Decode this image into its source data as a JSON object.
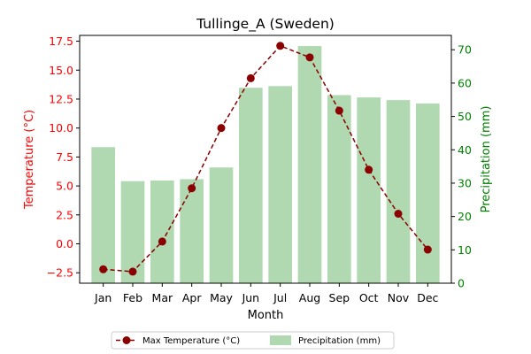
{
  "chart_data": {
    "type": "bar",
    "title": "Tullinge_A (Sweden)",
    "xlabel": "Month",
    "ylabel_left": "Temperature (°C)",
    "ylabel_right": "Precipitation (mm)",
    "categories": [
      "Jan",
      "Feb",
      "Mar",
      "Apr",
      "May",
      "Jun",
      "Jul",
      "Aug",
      "Sep",
      "Oct",
      "Nov",
      "Dec"
    ],
    "ylim_left": [
      -3.4,
      18.0
    ],
    "ylim_right": [
      0,
      74.3
    ],
    "yticks_left": [
      "−2.5",
      "0.0",
      "2.5",
      "5.0",
      "7.5",
      "10.0",
      "12.5",
      "15.0",
      "17.5"
    ],
    "yticks_left_values": [
      -2.5,
      0,
      2.5,
      5,
      7.5,
      10,
      12.5,
      15,
      17.5
    ],
    "yticks_right": [
      "0",
      "10",
      "20",
      "30",
      "40",
      "50",
      "60",
      "70"
    ],
    "yticks_right_values": [
      0,
      10,
      20,
      30,
      40,
      50,
      60,
      70
    ],
    "series": [
      {
        "name": "Max Temperature (°C)",
        "kind": "line",
        "axis": "left",
        "color": "#8b0000",
        "values": [
          -2.2,
          -2.4,
          0.2,
          4.8,
          10.0,
          14.3,
          17.1,
          16.1,
          11.5,
          6.4,
          2.6,
          -0.5
        ]
      },
      {
        "name": "Precipitation (mm)",
        "kind": "bar",
        "axis": "right",
        "color": "#b0d9b1",
        "values": [
          40.8,
          30.6,
          30.8,
          31.2,
          34.7,
          58.6,
          59.1,
          71.1,
          56.4,
          55.7,
          54.9,
          53.9
        ]
      }
    ],
    "legend_position": "bottom-center",
    "colors": {
      "left_axis": "#ff0000",
      "right_axis": "#008000"
    }
  }
}
